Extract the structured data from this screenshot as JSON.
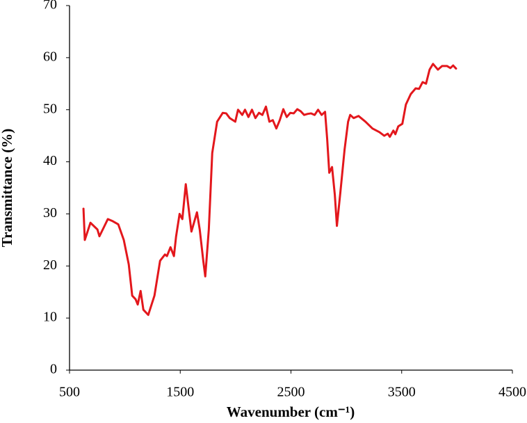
{
  "chart_data": {
    "type": "line",
    "x_label": "Wavenumber (cm⁻¹)",
    "y_label": "Transmittance (%)",
    "xlim": [
      500,
      4500
    ],
    "xticks": [
      500,
      1500,
      2500,
      3500,
      4500
    ],
    "ylim": [
      0,
      70
    ],
    "yticks": [
      0,
      10,
      20,
      30,
      40,
      50,
      60,
      70
    ],
    "grid": false,
    "series": [
      {
        "color": "#e3171c",
        "x": [
          626,
          638,
          689,
          752,
          770,
          814,
          846,
          890,
          940,
          990,
          1035,
          1066,
          1097,
          1116,
          1142,
          1167,
          1211,
          1267,
          1318,
          1362,
          1380,
          1412,
          1443,
          1462,
          1494,
          1519,
          1550,
          1569,
          1601,
          1651,
          1676,
          1708,
          1726,
          1758,
          1789,
          1833,
          1884,
          1915,
          1947,
          1997,
          2022,
          2060,
          2085,
          2116,
          2148,
          2179,
          2211,
          2242,
          2274,
          2305,
          2336,
          2368,
          2399,
          2431,
          2462,
          2494,
          2525,
          2557,
          2588,
          2619,
          2651,
          2682,
          2714,
          2745,
          2777,
          2808,
          2827,
          2846,
          2871,
          2896,
          2915,
          2947,
          2984,
          3016,
          3035,
          3066,
          3110,
          3173,
          3236,
          3299,
          3343,
          3374,
          3393,
          3425,
          3443,
          3469,
          3506,
          3538,
          3582,
          3626,
          3657,
          3689,
          3720,
          3752,
          3783,
          3827,
          3865,
          3909,
          3940,
          3965,
          3991
        ],
        "values": [
          31,
          25,
          28.3,
          27,
          25.7,
          27.6,
          29,
          28.6,
          28,
          25,
          20.3,
          14.3,
          13.6,
          12.6,
          15.2,
          11.6,
          10.6,
          14.3,
          21,
          22.2,
          21.9,
          23.6,
          21.9,
          25.6,
          30,
          29,
          35.7,
          32.3,
          26.6,
          30.3,
          27,
          21,
          18,
          27,
          41.7,
          47.7,
          49.4,
          49.3,
          48.4,
          47.7,
          50,
          49,
          50,
          48.6,
          50,
          48.4,
          49.4,
          49,
          50.6,
          47.7,
          48,
          46.4,
          48,
          50.1,
          48.6,
          49.4,
          49.3,
          50.1,
          49.7,
          49,
          49.2,
          49.3,
          49,
          50,
          49,
          49.6,
          44.4,
          37.9,
          39,
          33.7,
          27.7,
          34.3,
          42.3,
          47.7,
          49,
          48.4,
          48.8,
          47.7,
          46.4,
          45.7,
          45,
          45.4,
          44.8,
          46,
          45.3,
          46.8,
          47.3,
          51,
          53,
          54.1,
          54,
          55.3,
          55,
          57.7,
          58.8,
          57.7,
          58.4,
          58.4,
          58,
          58.5,
          57.9
        ]
      }
    ]
  }
}
